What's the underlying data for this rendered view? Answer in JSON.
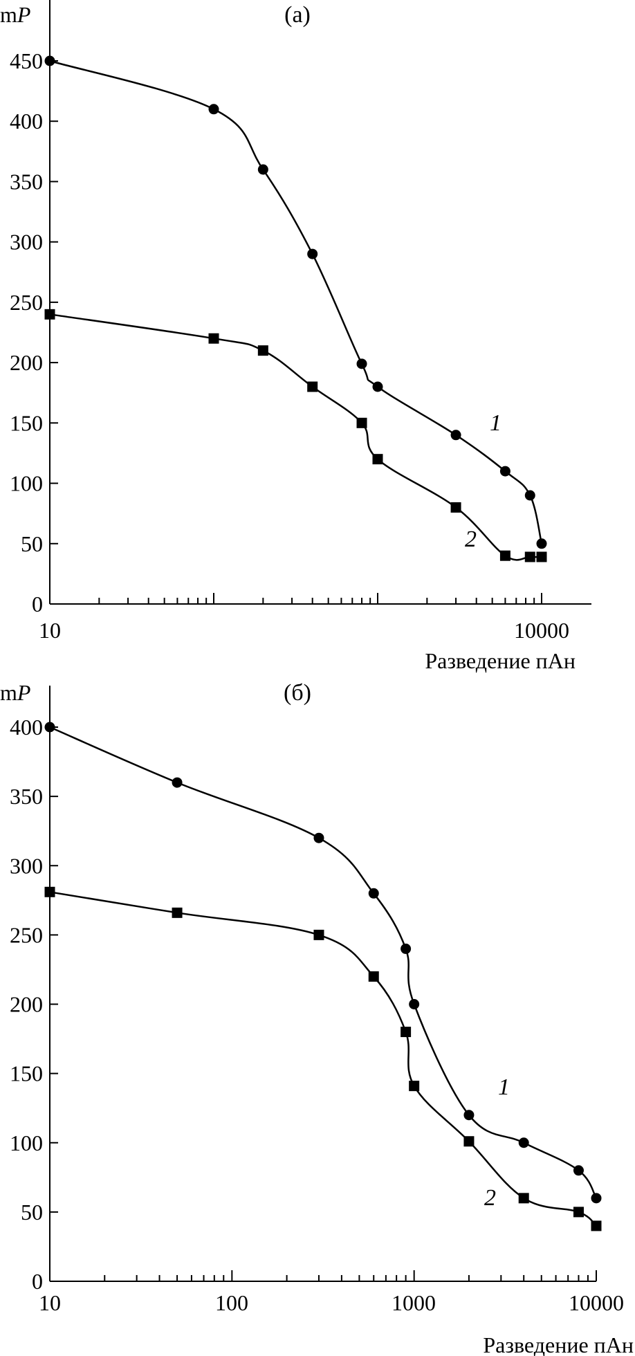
{
  "chart_data": [
    {
      "panel": "(а)",
      "type": "line",
      "title": "(а)",
      "ylabel": "mP",
      "ylabel_plain": "m",
      "ylabel_italic": "P",
      "xlabel": "Разведение пАн",
      "xscale": "log",
      "xlim": [
        10,
        18000
      ],
      "ylim": [
        0,
        450
      ],
      "x_tick_labels": [
        "10",
        "10000"
      ],
      "y_ticks": [
        0,
        50,
        100,
        150,
        200,
        250,
        300,
        350,
        400,
        450
      ],
      "y_tick_labels": [
        "0",
        "50",
        "100",
        "150",
        "200",
        "250",
        "300",
        "350",
        "400",
        "450"
      ],
      "series": [
        {
          "name": "1",
          "marker": "circle",
          "x": [
            10,
            100,
            200,
            400,
            800,
            1000,
            3000,
            6000,
            8500,
            10000
          ],
          "y": [
            450,
            410,
            360,
            290,
            199,
            180,
            140,
            110,
            90,
            50
          ]
        },
        {
          "name": "2",
          "marker": "square",
          "x": [
            10,
            100,
            200,
            400,
            800,
            1000,
            3000,
            6000,
            8500,
            10000
          ],
          "y": [
            240,
            220,
            210,
            180,
            150,
            120,
            80,
            40,
            39,
            39
          ]
        }
      ]
    },
    {
      "panel": "(б)",
      "type": "line",
      "title": "(б)",
      "ylabel": "mP",
      "ylabel_plain": "m",
      "ylabel_italic": "P",
      "xlabel": "Разведение пАн",
      "xscale": "log",
      "xlim": [
        10,
        10000
      ],
      "ylim": [
        0,
        400
      ],
      "x_tick_labels": [
        "10",
        "100",
        "1000",
        "10000"
      ],
      "y_ticks": [
        0,
        50,
        100,
        150,
        200,
        250,
        300,
        350,
        400
      ],
      "y_tick_labels": [
        "0",
        "50",
        "100",
        "150",
        "200",
        "250",
        "300",
        "350",
        "400"
      ],
      "series": [
        {
          "name": "1",
          "marker": "circle",
          "x": [
            10,
            50,
            300,
            600,
            900,
            1000,
            2000,
            4000,
            8000,
            10000
          ],
          "y": [
            400,
            360,
            320,
            280,
            240,
            200,
            120,
            100,
            80,
            60
          ]
        },
        {
          "name": "2",
          "marker": "square",
          "x": [
            10,
            50,
            300,
            600,
            900,
            1000,
            2000,
            4000,
            8000,
            10000
          ],
          "y": [
            281,
            266,
            250,
            220,
            180,
            141,
            101,
            60,
            50,
            40
          ]
        }
      ]
    }
  ]
}
